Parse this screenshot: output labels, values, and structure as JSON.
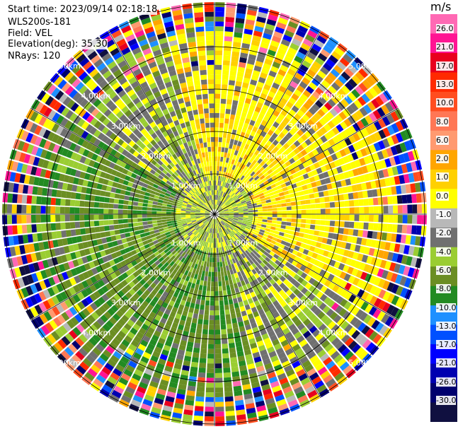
{
  "header": {
    "start_time": "Start time: 2023/09/14 02:18:18",
    "instrument": "WLS200s-181",
    "field": "Field: VEL",
    "elevation": "Elevation(deg): 35.30",
    "nrays": "NRays: 120"
  },
  "chart_data": {
    "type": "heatmap",
    "projection": "polar PPI",
    "field": "VEL",
    "units": "m/s",
    "elevation_deg": 35.3,
    "n_rays": 120,
    "range_rings_km": [
      1,
      2,
      3,
      4,
      5
    ],
    "range_ring_labels": [
      "1.00km",
      "2.00km",
      "3.00km",
      "4.00km",
      "5.00km"
    ],
    "max_range_km": 5,
    "colorbar": {
      "title": "m/s",
      "ticks": [
        "26.0",
        "21.0",
        "17.0",
        "13.0",
        "10.0",
        "8.0",
        "6.0",
        "2.0",
        "1.0",
        "0.0",
        "-1.0",
        "-2.0",
        "-4.0",
        "-6.0",
        "-8.0",
        "-10.0",
        "-13.0",
        "-17.0",
        "-21.0",
        "-26.0",
        "-30.0"
      ],
      "colors": [
        "#ff69b4",
        "#ff1493",
        "#e8001e",
        "#ff2a00",
        "#ff4d1f",
        "#ff7755",
        "#ff9a70",
        "#ffa500",
        "#ffd000",
        "#ffff00",
        "#b8b8b8",
        "#707070",
        "#9acd32",
        "#6b8e23",
        "#228b22",
        "#1e90ff",
        "#0050ff",
        "#0000ff",
        "#0000b0",
        "#00006e",
        "#101040"
      ]
    }
  }
}
